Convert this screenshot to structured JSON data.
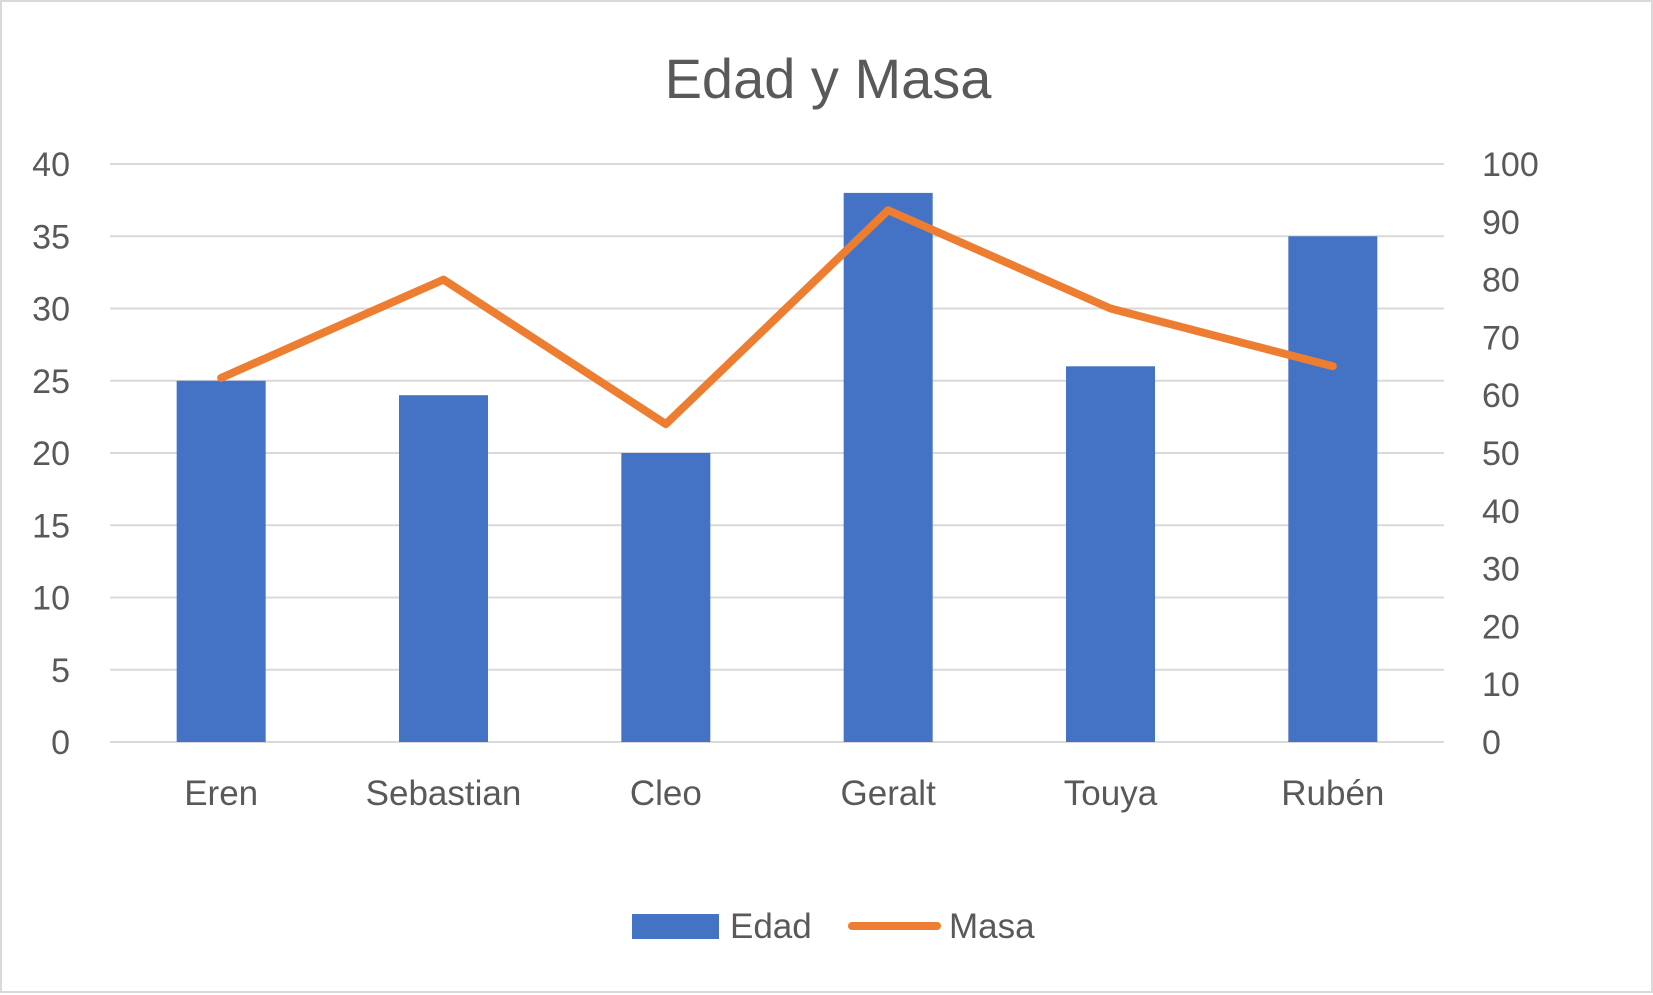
{
  "colors": {
    "bar": "#4472c4",
    "line": "#ed7d31",
    "grid": "#d9d9d9",
    "text": "#595959"
  },
  "chart_data": {
    "type": "bar",
    "title": "Edad y Masa",
    "categories": [
      "Eren",
      "Sebastian",
      "Cleo",
      "Geralt",
      "Touya",
      "Rubén"
    ],
    "series": [
      {
        "name": "Edad",
        "type": "bar",
        "axis": "primary",
        "values": [
          25,
          24,
          20,
          38,
          26,
          35
        ]
      },
      {
        "name": "Masa",
        "type": "line",
        "axis": "secondary",
        "values": [
          63,
          80,
          55,
          92,
          75,
          65
        ]
      }
    ],
    "y_primary": {
      "range": [
        0,
        40
      ],
      "step": 5,
      "ticks": [
        "0",
        "5",
        "10",
        "15",
        "20",
        "25",
        "30",
        "35",
        "40"
      ]
    },
    "y_secondary": {
      "range": [
        0,
        100
      ],
      "step": 10,
      "ticks": [
        "0",
        "10",
        "20",
        "30",
        "40",
        "50",
        "60",
        "70",
        "80",
        "90",
        "100"
      ]
    },
    "grid": true,
    "legend": "bottom"
  }
}
